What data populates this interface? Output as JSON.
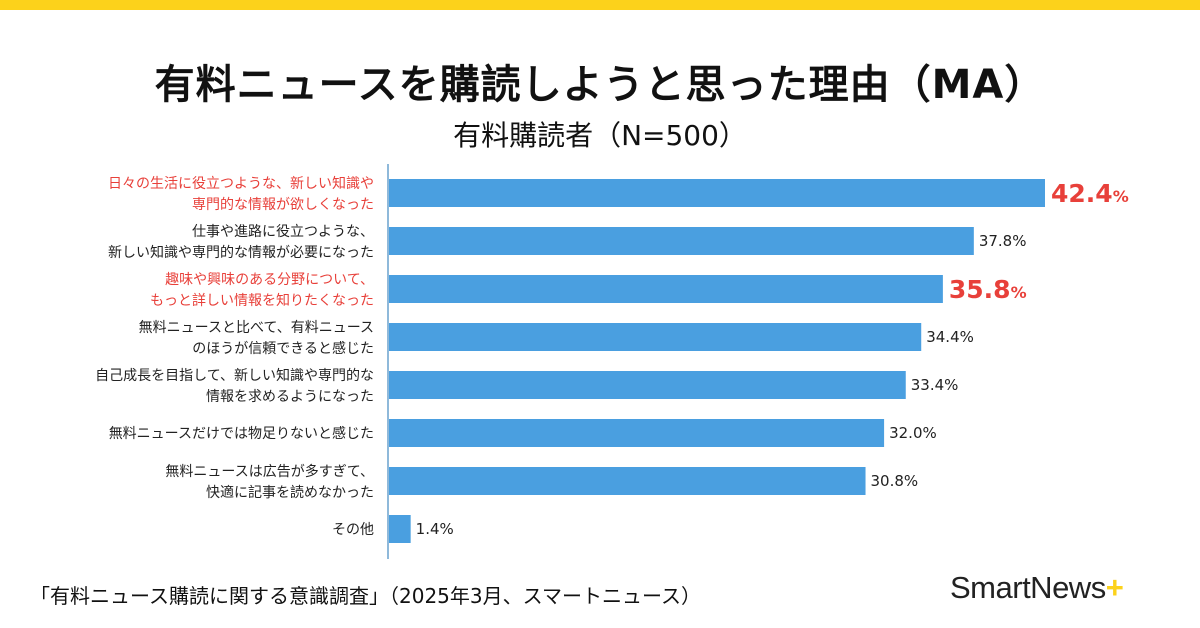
{
  "colors": {
    "bar": "#4A9FE0",
    "highlight": "#E8403A",
    "text": "#222222",
    "accent": "#FCD21B",
    "axis": "#8FB9DA"
  },
  "chart_data": {
    "type": "bar",
    "orientation": "horizontal",
    "title": "有料ニュースを購読しようと思った理由（MA）",
    "subtitle": "有料購読者（N=500）",
    "unit": "%",
    "xlim": [
      0,
      42.4
    ],
    "categories": [
      {
        "lines": [
          "日々の生活に役立つような、新しい知識や",
          "専門的な情報が欲しくなった"
        ],
        "value": 42.4,
        "label": "42.4",
        "highlight": true
      },
      {
        "lines": [
          "仕事や進路に役立つような、",
          "新しい知識や専門的な情報が必要になった"
        ],
        "value": 37.8,
        "label": "37.8",
        "highlight": false
      },
      {
        "lines": [
          "趣味や興味のある分野について、",
          "もっと詳しい情報を知りたくなった"
        ],
        "value": 35.8,
        "label": "35.8",
        "highlight": true
      },
      {
        "lines": [
          "無料ニュースと比べて、有料ニュース",
          "のほうが信頼できると感じた"
        ],
        "value": 34.4,
        "label": "34.4",
        "highlight": false
      },
      {
        "lines": [
          "自己成長を目指して、新しい知識や専門的な",
          "情報を求めるようになった"
        ],
        "value": 33.4,
        "label": "33.4",
        "highlight": false
      },
      {
        "lines": [
          "無料ニュースだけでは物足りないと感じた"
        ],
        "value": 32.0,
        "label": "32.0",
        "highlight": false
      },
      {
        "lines": [
          "無料ニュースは広告が多すぎて、",
          "快適に記事を読めなかった"
        ],
        "value": 30.8,
        "label": "30.8",
        "highlight": false
      },
      {
        "lines": [
          "その他"
        ],
        "value": 1.4,
        "label": "1.4",
        "highlight": false
      }
    ]
  },
  "footer": {
    "source": "「有料ニュース購読に関する意識調査」（2025年3月、スマートニュース）"
  },
  "logo": {
    "text": "SmartNews",
    "plus": "+"
  }
}
